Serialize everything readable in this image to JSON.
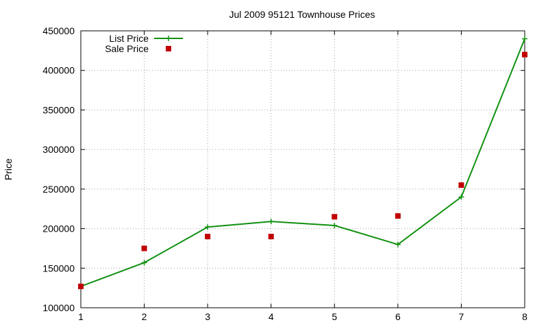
{
  "chart_data": {
    "type": "line",
    "title": "Jul 2009 95121 Townhouse Prices",
    "xlabel": "",
    "ylabel": "Price",
    "x": [
      1,
      2,
      3,
      4,
      5,
      6,
      7,
      8
    ],
    "xlim": [
      1,
      8
    ],
    "ylim": [
      100000,
      450000
    ],
    "xticks": [
      1,
      2,
      3,
      4,
      5,
      6,
      7,
      8
    ],
    "yticks": [
      100000,
      150000,
      200000,
      250000,
      300000,
      350000,
      400000,
      450000
    ],
    "grid": true,
    "legend_position": "top-left",
    "series": [
      {
        "name": "List Price",
        "style": "line-with-plus-markers",
        "color": "#109010",
        "values": [
          127000,
          157000,
          202000,
          209000,
          204000,
          180000,
          240000,
          440000
        ]
      },
      {
        "name": "Sale Price",
        "style": "square-markers",
        "color": "#c00000",
        "values": [
          127000,
          175000,
          190000,
          190000,
          215000,
          216000,
          255000,
          420000
        ]
      }
    ]
  }
}
